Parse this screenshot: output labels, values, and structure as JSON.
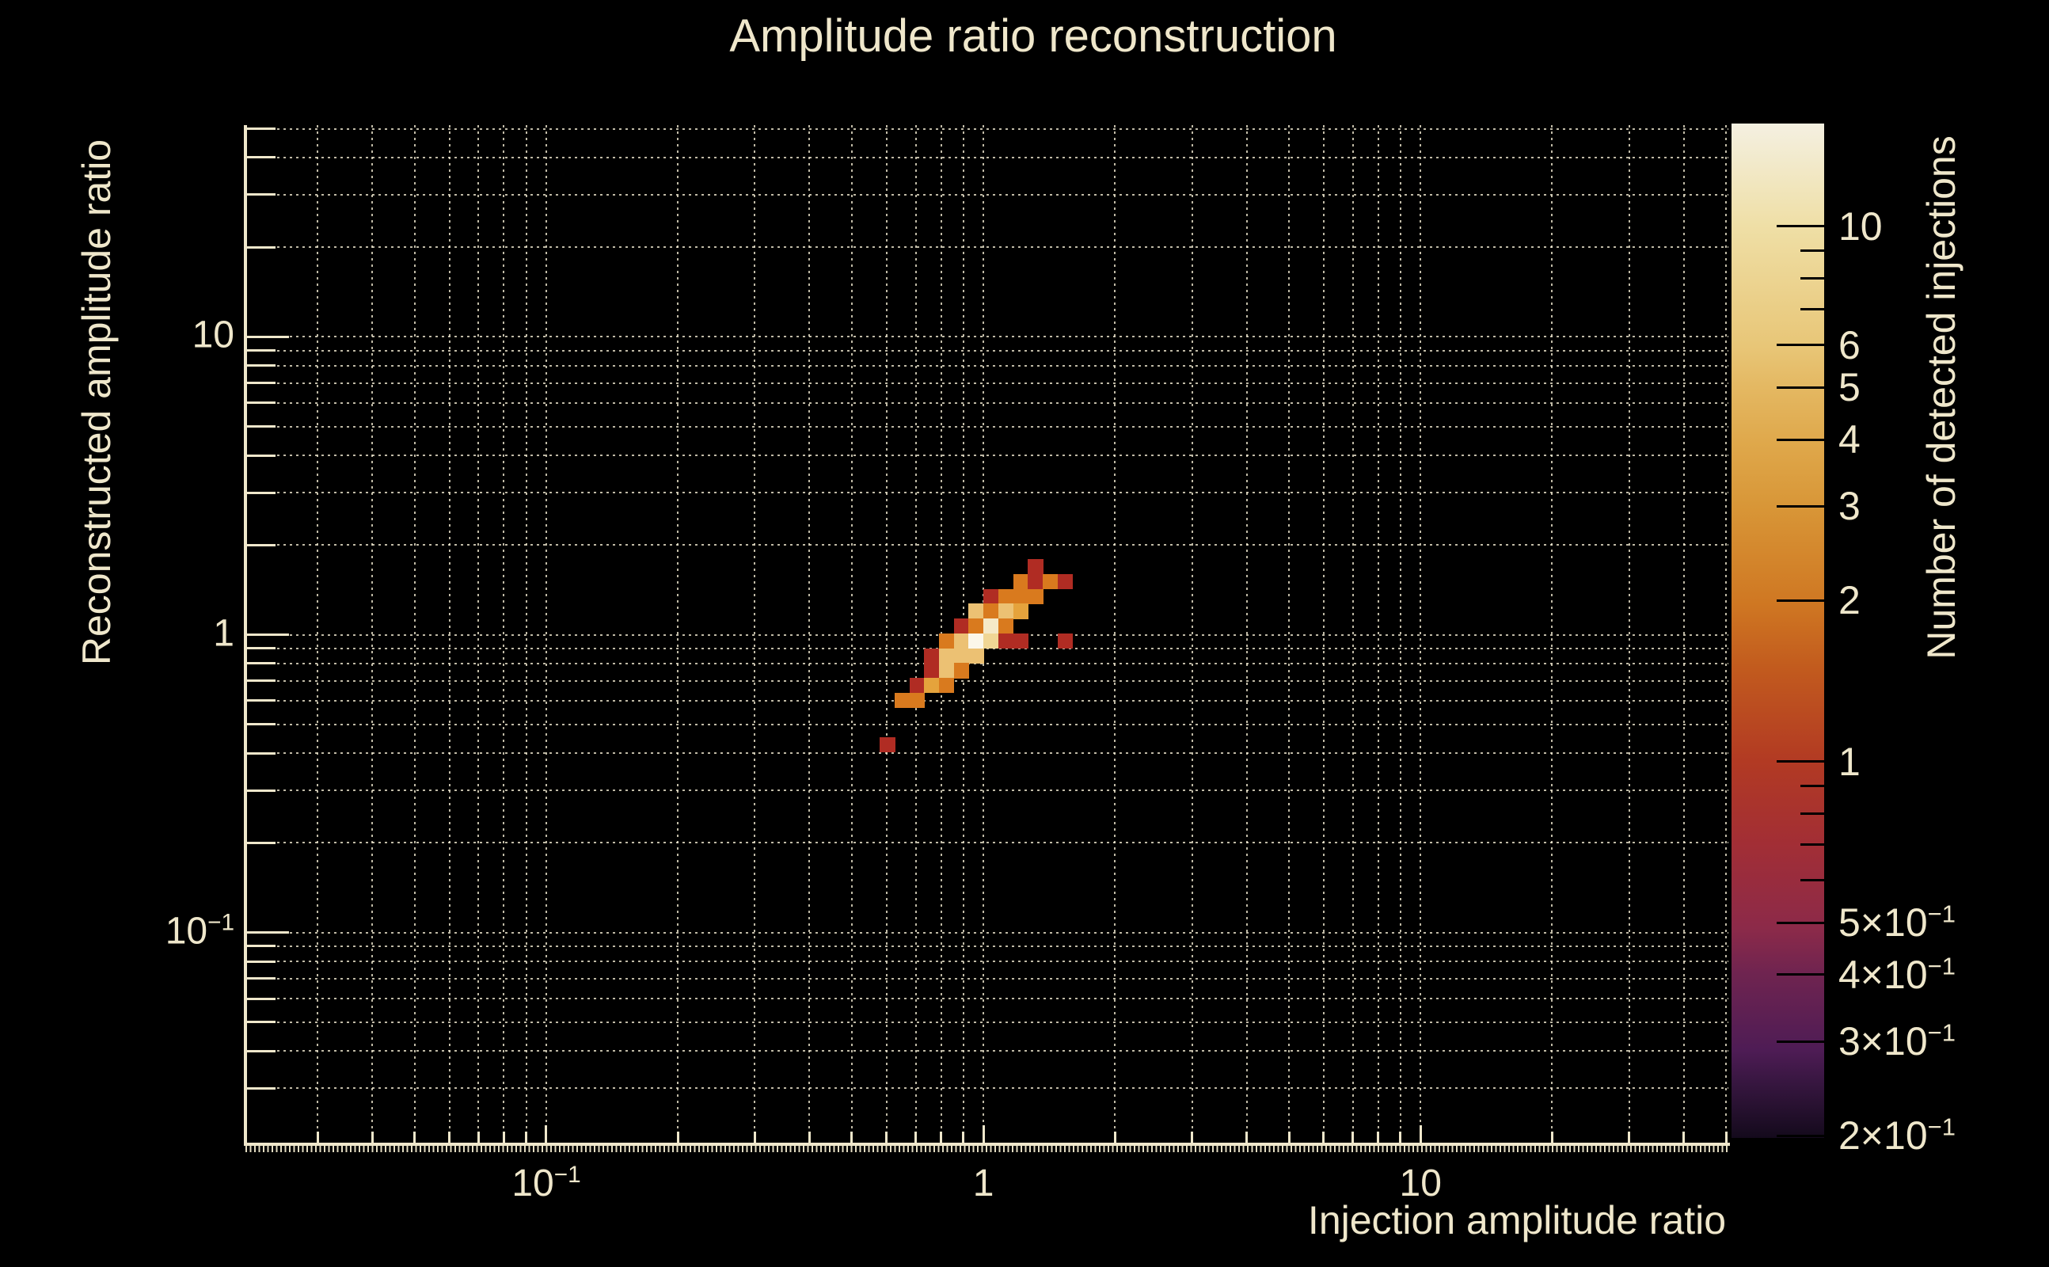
{
  "figure": {
    "title": "Amplitude ratio reconstruction",
    "background_color": "#000000",
    "text_color": "#efe7cb",
    "grid_color": "#f0e8d0"
  },
  "chart_data": {
    "type": "heatmap",
    "title": "Amplitude ratio reconstruction",
    "xlabel": "Injection amplitude ratio",
    "ylabel": "Reconstructed amplitude ratio",
    "zlabel": "Number of detected injections",
    "x_scale": "log",
    "y_scale": "log",
    "z_scale": "log",
    "x_range": [
      0.0205,
      50.6
    ],
    "y_range": [
      0.0197,
      51.4
    ],
    "z_range": [
      0.2,
      15
    ],
    "grid": true,
    "grid_values": [
      0.03,
      0.04,
      0.05,
      0.06,
      0.07,
      0.08,
      0.09,
      0.1,
      0.2,
      0.3,
      0.4,
      0.5,
      0.6,
      0.7,
      0.8,
      0.9,
      1,
      2,
      3,
      4,
      5,
      6,
      7,
      8,
      9,
      10,
      20,
      30,
      40,
      50
    ],
    "decade_values": [
      0.1,
      1,
      10
    ],
    "x_tick_labels": [
      {
        "value": 0.1,
        "text": "10",
        "sup": "−1"
      },
      {
        "value": 1,
        "text": "1"
      },
      {
        "value": 10,
        "text": "10"
      }
    ],
    "y_tick_labels": [
      {
        "value": 10,
        "text": "10"
      },
      {
        "value": 1,
        "text": "1"
      },
      {
        "value": 0.1,
        "text": "10",
        "sup": "−1"
      }
    ],
    "bins": {
      "note": "log-log histogram cells; x bin edges = x_edge_factor^i, y bin top edge = 1.0105 / y_edge_factor^m, cell entries = [i, m, count]",
      "x_edge_factor": 1.0811,
      "y_edge_factor": 1.1213,
      "total_detected_injections": 100,
      "cells": [
        [
          3,
          -5,
          1
        ],
        [
          2,
          -4,
          2
        ],
        [
          3,
          -4,
          1
        ],
        [
          4,
          -4,
          2
        ],
        [
          5,
          -4,
          1
        ],
        [
          0,
          -3,
          1
        ],
        [
          1,
          -3,
          2
        ],
        [
          2,
          -3,
          2
        ],
        [
          3,
          -3,
          2
        ],
        [
          -1,
          -2,
          4
        ],
        [
          0,
          -2,
          2
        ],
        [
          1,
          -2,
          4
        ],
        [
          2,
          -2,
          3
        ],
        [
          -2,
          -1,
          1
        ],
        [
          -1,
          -1,
          2
        ],
        [
          0,
          -1,
          9
        ],
        [
          1,
          -1,
          2
        ],
        [
          -3,
          0,
          2
        ],
        [
          -2,
          0,
          4
        ],
        [
          -1,
          0,
          13
        ],
        [
          0,
          0,
          6
        ],
        [
          1,
          0,
          1
        ],
        [
          2,
          0,
          1
        ],
        [
          5,
          0,
          1
        ],
        [
          -4,
          1,
          1
        ],
        [
          -3,
          1,
          4
        ],
        [
          -2,
          1,
          4
        ],
        [
          -1,
          1,
          4
        ],
        [
          -4,
          2,
          1
        ],
        [
          -3,
          2,
          4
        ],
        [
          -2,
          2,
          2
        ],
        [
          -5,
          3,
          1
        ],
        [
          -4,
          3,
          3
        ],
        [
          -3,
          3,
          2
        ],
        [
          -6,
          4,
          2
        ],
        [
          -5,
          4,
          2
        ],
        [
          -7,
          7,
          1
        ]
      ]
    },
    "count_colors": {
      "1": "#b02c23",
      "2": "#d97a1e",
      "3": "#e5a33c",
      "4": "#ecc173",
      "6": "#f0d695",
      "9": "#f5e9c8",
      "13": "#fbf7ea"
    },
    "colorbar": {
      "title": "Number of detected injections",
      "tick_values": [
        10,
        9,
        8,
        7,
        6,
        5,
        4,
        3,
        2,
        1,
        0.9,
        0.8,
        0.7,
        0.6,
        0.5,
        0.4,
        0.3,
        0.2
      ],
      "labeled_ticks": [
        {
          "value": 10,
          "text": "10"
        },
        {
          "value": 6,
          "text": "6"
        },
        {
          "value": 5,
          "text": "5"
        },
        {
          "value": 4,
          "text": "4"
        },
        {
          "value": 3,
          "text": "3"
        },
        {
          "value": 2,
          "text": "2"
        },
        {
          "value": 1,
          "text": "1"
        },
        {
          "value": 0.5,
          "text": "5×10",
          "sup": "−1"
        },
        {
          "value": 0.4,
          "text": "4×10",
          "sup": "−1"
        },
        {
          "value": 0.3,
          "text": "3×10",
          "sup": "−1"
        },
        {
          "value": 0.2,
          "text": "2×10",
          "sup": "−1"
        }
      ],
      "gradient_stops": [
        {
          "pos": 0.0,
          "color": "#f4f0e1"
        },
        {
          "pos": 0.101,
          "color": "#efdfa6"
        },
        {
          "pos": 0.22,
          "color": "#e8c677"
        },
        {
          "pos": 0.26,
          "color": "#e4b862"
        },
        {
          "pos": 0.315,
          "color": "#dfa84b"
        },
        {
          "pos": 0.378,
          "color": "#d89637"
        },
        {
          "pos": 0.474,
          "color": "#cf7722"
        },
        {
          "pos": 0.536,
          "color": "#c25b1e"
        },
        {
          "pos": 0.629,
          "color": "#b23a23"
        },
        {
          "pos": 0.71,
          "color": "#a22e35"
        },
        {
          "pos": 0.793,
          "color": "#8c2a49"
        },
        {
          "pos": 0.838,
          "color": "#6f2450"
        },
        {
          "pos": 0.914,
          "color": "#4e1c55"
        },
        {
          "pos": 0.947,
          "color": "#36163f"
        },
        {
          "pos": 1.0,
          "color": "#140a1c"
        }
      ]
    }
  }
}
